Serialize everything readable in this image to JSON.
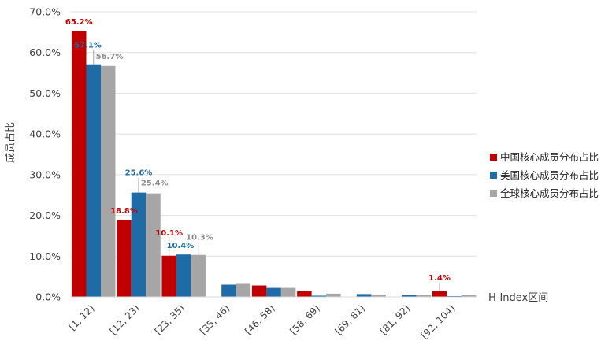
{
  "chart_data": {
    "type": "bar",
    "ylabel": "成员占比",
    "xlabel": "H-Index区间",
    "ylim": [
      0,
      70
    ],
    "ytick_step": 10,
    "ytick_labels": [
      "0.0%",
      "10.0%",
      "20.0%",
      "30.0%",
      "40.0%",
      "50.0%",
      "60.0%",
      "70.0%"
    ],
    "grid": true,
    "legend_position": "right",
    "categories": [
      "[1, 12)",
      "[12, 23)",
      "[23, 35)",
      "[35, 46)",
      "[46, 58)",
      "[58, 69)",
      "[69, 81)",
      "[81, 92)",
      "[92, 104)"
    ],
    "series": [
      {
        "name": "中国核心成员分布占比",
        "color": "#c00000",
        "values": [
          65.2,
          18.8,
          10.1,
          0.0,
          2.8,
          1.4,
          0.0,
          0.0,
          1.4
        ]
      },
      {
        "name": "美国核心成员分布占比",
        "color": "#1f6ba5",
        "values": [
          57.1,
          25.6,
          10.4,
          3.0,
          2.2,
          0.3,
          0.7,
          0.4,
          0.2
        ]
      },
      {
        "name": "全球核心成员分布占比",
        "color": "#a6a6a6",
        "values": [
          56.7,
          25.4,
          10.3,
          3.2,
          2.2,
          0.8,
          0.6,
          0.4,
          0.4
        ]
      }
    ],
    "data_labels": [
      {
        "series": 0,
        "index": 0,
        "text": "65.2%"
      },
      {
        "series": 1,
        "index": 0,
        "text": "57.1%"
      },
      {
        "series": 2,
        "index": 0,
        "text": "56.7%"
      },
      {
        "series": 0,
        "index": 1,
        "text": "18.8%"
      },
      {
        "series": 1,
        "index": 1,
        "text": "25.6%"
      },
      {
        "series": 2,
        "index": 1,
        "text": "25.4%"
      },
      {
        "series": 0,
        "index": 2,
        "text": "10.1%"
      },
      {
        "series": 1,
        "index": 2,
        "text": "10.4%"
      },
      {
        "series": 2,
        "index": 2,
        "text": "10.3%"
      },
      {
        "series": 0,
        "index": 8,
        "text": "1.4%"
      }
    ]
  }
}
